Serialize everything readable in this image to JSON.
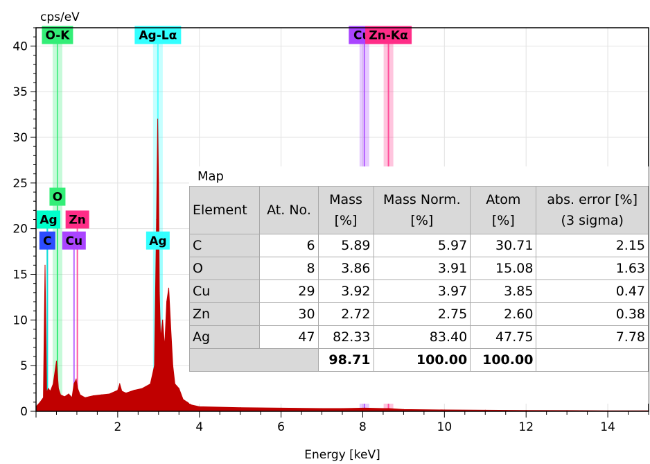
{
  "chart_data": {
    "type": "line",
    "title": "",
    "xlabel": "Energy [keV]",
    "ylabel": "cps/eV",
    "xlim": [
      0,
      15.0
    ],
    "ylim": [
      0,
      42
    ],
    "x_ticks": [
      2,
      4,
      6,
      8,
      10,
      12,
      14
    ],
    "y_ticks": [
      0,
      5,
      10,
      15,
      20,
      25,
      30,
      35,
      40
    ],
    "grid": true,
    "series": [
      {
        "color": "#c00000",
        "x": [
          0.0,
          0.1,
          0.18,
          0.22,
          0.26,
          0.3,
          0.35,
          0.42,
          0.5,
          0.55,
          0.6,
          0.7,
          0.8,
          0.88,
          0.93,
          0.98,
          1.02,
          1.08,
          1.2,
          1.4,
          1.6,
          1.8,
          2.0,
          2.05,
          2.1,
          2.2,
          2.4,
          2.6,
          2.8,
          2.9,
          2.95,
          2.98,
          3.0,
          3.02,
          3.05,
          3.1,
          3.15,
          3.2,
          3.25,
          3.3,
          3.35,
          3.4,
          3.5,
          3.6,
          3.7,
          3.8,
          4.0,
          5.0,
          6.0,
          7.0,
          7.5,
          8.05,
          8.5,
          8.64,
          9.0,
          10.0,
          11.0,
          12.0,
          13.0,
          14.0,
          15.0
        ],
        "y": [
          0.5,
          1.0,
          1.5,
          16.0,
          2.0,
          2.5,
          2.2,
          3.0,
          5.5,
          2.5,
          1.8,
          1.6,
          1.9,
          1.5,
          3.0,
          3.5,
          2.5,
          1.8,
          1.5,
          1.7,
          1.8,
          1.9,
          2.3,
          3.0,
          2.2,
          2.0,
          2.3,
          2.5,
          3.0,
          5.0,
          21.0,
          32.0,
          25.0,
          13.0,
          8.0,
          10.0,
          7.0,
          12.0,
          13.5,
          9.0,
          5.0,
          3.0,
          2.5,
          1.3,
          1.0,
          0.7,
          0.5,
          0.4,
          0.35,
          0.3,
          0.3,
          0.35,
          0.3,
          0.3,
          0.2,
          0.15,
          0.12,
          0.1,
          0.08,
          0.06,
          0.05
        ]
      }
    ],
    "element_markers": [
      {
        "label": "C",
        "energy": 0.277,
        "color": "#2b4cff",
        "band_height": 20,
        "marker_level": 18.7
      },
      {
        "label": "Ag",
        "energy": 0.277,
        "color": "#00ffcc",
        "band_height": 22,
        "marker_level": 21.0
      },
      {
        "label": "O",
        "energy": 0.525,
        "color": "#33ee77",
        "band_height": 23,
        "marker_level": 23.5
      },
      {
        "label": "O-K",
        "energy": 0.525,
        "color": "#33ee77",
        "band_height": 41,
        "marker_level": 41.2
      },
      {
        "label": "Cu",
        "energy": 0.93,
        "color": "#aa44ff",
        "band_height": 19,
        "marker_level": 18.7
      },
      {
        "label": "Zn",
        "energy": 1.012,
        "color": "#ff2d87",
        "band_height": 21,
        "marker_level": 21.0
      },
      {
        "label": "Ag",
        "energy": 2.984,
        "color": "#33ffff",
        "band_height": 19,
        "marker_level": 18.7
      },
      {
        "label": "Ag-Lα",
        "energy": 2.984,
        "color": "#33ffff",
        "band_height": 41,
        "marker_level": 41.2
      },
      {
        "label": "Cu-",
        "energy": 8.04,
        "color": "#aa44ff",
        "band_height": 41,
        "marker_level": 41.2
      },
      {
        "label": "Zn-Kα",
        "energy": 8.63,
        "color": "#ff2d87",
        "band_height": 41,
        "marker_level": 41.2
      }
    ]
  },
  "results_table": {
    "title": "Map",
    "headers": {
      "element": "Element",
      "atno": "At. No.",
      "mass_1": "Mass",
      "mass_2": "[%]",
      "massnorm_1": "Mass Norm.",
      "massnorm_2": "[%]",
      "atom_1": "Atom",
      "atom_2": "[%]",
      "error_1": "abs. error [%]",
      "error_2": "(3 sigma)"
    },
    "rows": [
      {
        "element": "C",
        "atno": "6",
        "mass": "5.89",
        "massnorm": "5.97",
        "atom": "30.71",
        "error": "2.15"
      },
      {
        "element": "O",
        "atno": "8",
        "mass": "3.86",
        "massnorm": "3.91",
        "atom": "15.08",
        "error": "1.63"
      },
      {
        "element": "Cu",
        "atno": "29",
        "mass": "3.92",
        "massnorm": "3.97",
        "atom": "3.85",
        "error": "0.47"
      },
      {
        "element": "Zn",
        "atno": "30",
        "mass": "2.72",
        "massnorm": "2.75",
        "atom": "2.60",
        "error": "0.38"
      },
      {
        "element": "Ag",
        "atno": "47",
        "mass": "82.33",
        "massnorm": "83.40",
        "atom": "47.75",
        "error": "7.78"
      }
    ],
    "totals": {
      "mass": "98.71",
      "massnorm": "100.00",
      "atom": "100.00"
    }
  }
}
